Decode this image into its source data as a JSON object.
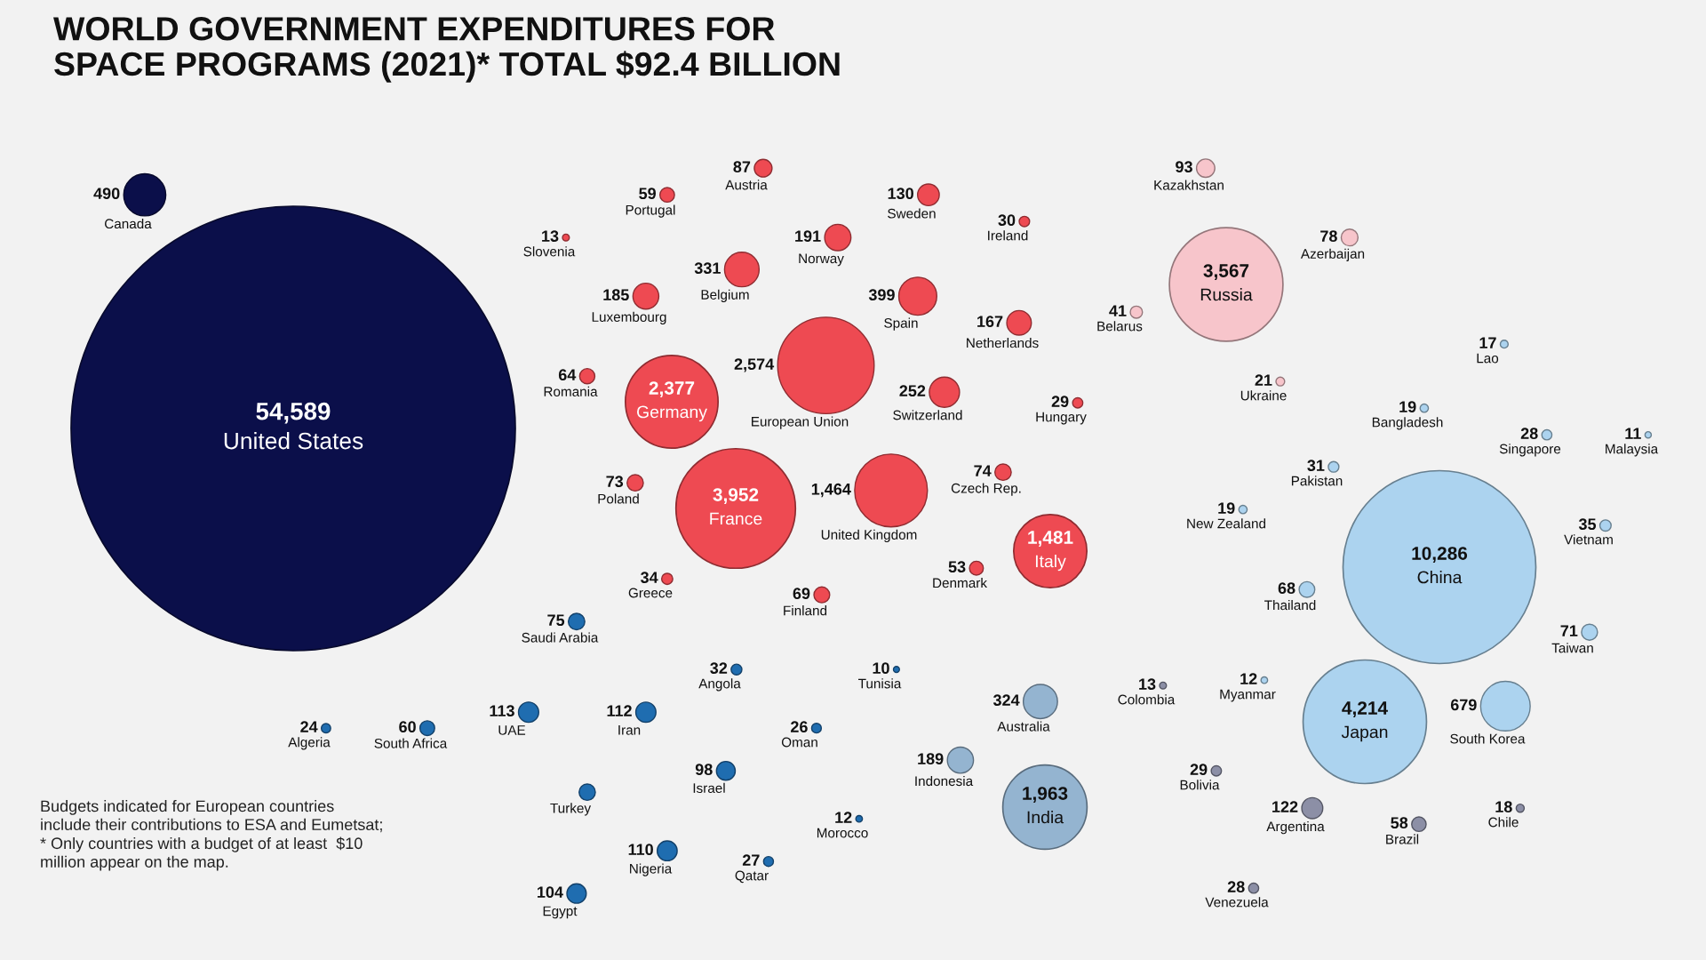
{
  "chart_data": {
    "type": "other",
    "title": "WORLD GOVERNMENT EXPENDITURES FOR\nSPACE PROGRAMS (2021)* TOTAL $92.4 BILLION",
    "annotations": [
      "Budgets indicated for European countries\ninclude their contributions to ESA and Eumetsat;\n* Only countries with a budget of at least  $10\nmillion appear on the map."
    ],
    "categories": [
      "United States",
      "Canada",
      "European Union",
      "France",
      "Germany",
      "Italy",
      "United Kingdom",
      "Spain",
      "Belgium",
      "Switzerland",
      "Norway",
      "Luxembourg",
      "Netherlands",
      "Sweden",
      "Austria",
      "Czech Rep.",
      "Poland",
      "Finland",
      "Romania",
      "Portugal",
      "Denmark",
      "Greece",
      "Ireland",
      "Hungary",
      "Slovenia",
      "Russia",
      "Kazakhstan",
      "Azerbaijan",
      "Belarus",
      "Ukraine",
      "China",
      "Japan",
      "India",
      "South Korea",
      "Australia",
      "Indonesia",
      "Taiwan",
      "Thailand",
      "Vietnam",
      "Pakistan",
      "Singapore",
      "Bangladesh",
      "New Zealand",
      "Lao",
      "Myanmar",
      "Malaysia",
      "Turkey",
      "UAE",
      "Iran",
      "Nigeria",
      "Egypt",
      "Israel",
      "Saudi Arabia",
      "South Africa",
      "Angola",
      "Qatar",
      "Oman",
      "Algeria",
      "Morocco",
      "Tunisia",
      "Argentina",
      "Brazil",
      "Bolivia",
      "Venezuela",
      "Chile",
      "Colombia"
    ],
    "values": [
      54589,
      490,
      2574,
      3952,
      2377,
      1481,
      1464,
      399,
      331,
      252,
      191,
      185,
      167,
      130,
      87,
      74,
      73,
      69,
      64,
      59,
      53,
      34,
      30,
      29,
      13,
      3567,
      93,
      78,
      41,
      21,
      10286,
      4214,
      1963,
      679,
      324,
      189,
      71,
      68,
      35,
      31,
      28,
      19,
      19,
      17,
      12,
      11,
      null,
      113,
      112,
      110,
      104,
      98,
      75,
      60,
      32,
      27,
      26,
      24,
      12,
      10,
      122,
      58,
      29,
      28,
      18,
      13
    ],
    "value_labels": [
      "54,589",
      "490",
      "2,574",
      "3,952",
      "2,377",
      "1,481",
      "1,464",
      "399",
      "331",
      "252",
      "191",
      "185",
      "167",
      "130",
      "87",
      "74",
      "73",
      "69",
      "64",
      "59",
      "53",
      "34",
      "30",
      "29",
      "13",
      "3,567",
      "93",
      "78",
      "41",
      "21",
      "10,286",
      "4,214",
      "1,963",
      "679",
      "324",
      "189",
      "71",
      "68",
      "35",
      "31",
      "28",
      "19",
      "19",
      "17",
      "12",
      "11",
      null,
      "113",
      "112",
      "110",
      "104",
      "98",
      "75",
      "60",
      "32",
      "27",
      "26",
      "24",
      "12",
      "10",
      "122",
      "58",
      "29",
      "28",
      "18",
      "13"
    ],
    "colors": [
      "#0b0f4a",
      "#0b0f4a",
      "#ee4a52",
      "#ee4a52",
      "#ee4a52",
      "#ee4a52",
      "#ee4a52",
      "#ee4a52",
      "#ee4a52",
      "#ee4a52",
      "#ee4a52",
      "#ee4a52",
      "#ee4a52",
      "#ee4a52",
      "#ee4a52",
      "#ee4a52",
      "#ee4a52",
      "#ee4a52",
      "#ee4a52",
      "#ee4a52",
      "#ee4a52",
      "#ee4a52",
      "#ee4a52",
      "#ee4a52",
      "#ee4a52",
      "#f7c5cb",
      "#f7c5cb",
      "#f7c5cb",
      "#f7c5cb",
      "#f7c5cb",
      "#acd3ef",
      "#acd3ef",
      "#94b4d0",
      "#acd3ef",
      "#94b4d0",
      "#94b4d0",
      "#acd3ef",
      "#acd3ef",
      "#acd3ef",
      "#acd3ef",
      "#acd3ef",
      "#acd3ef",
      "#acd3ef",
      "#acd3ef",
      "#acd3ef",
      "#acd3ef",
      "#1f6db0",
      "#1f6db0",
      "#1f6db0",
      "#1f6db0",
      "#1f6db0",
      "#1f6db0",
      "#1f6db0",
      "#1f6db0",
      "#1f6db0",
      "#1f6db0",
      "#1f6db0",
      "#1f6db0",
      "#1f6db0",
      "#1f6db0",
      "#8c8fa6",
      "#8c8fa6",
      "#8c8fa6",
      "#8c8fa6",
      "#8c8fa6",
      "#8c8fa6"
    ]
  }
}
